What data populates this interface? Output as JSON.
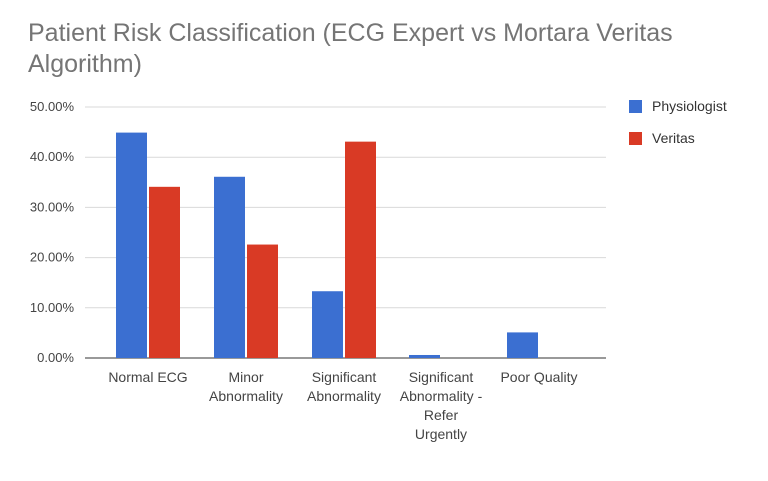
{
  "chart_data": {
    "type": "bar",
    "title": "Patient Risk Classification (ECG Expert vs Mortara Veritas Algorithm)",
    "xlabel": "",
    "ylabel": "",
    "categories": [
      [
        "Normal ECG"
      ],
      [
        "Minor",
        "Abnormality"
      ],
      [
        "Significant",
        "Abnormality"
      ],
      [
        "Significant",
        "Abnormality -",
        "Refer",
        "Urgently"
      ],
      [
        "Poor Quality"
      ]
    ],
    "series": [
      {
        "name": "Physiologist",
        "color": "#3b6fd1",
        "values": [
          44.9,
          36.1,
          13.3,
          0.6,
          5.1
        ]
      },
      {
        "name": "Veritas",
        "color": "#d93a25",
        "values": [
          34.1,
          22.6,
          43.1,
          0,
          0
        ]
      }
    ],
    "ylim": [
      0,
      50
    ],
    "yticks": [
      "0.00%",
      "10.00%",
      "20.00%",
      "30.00%",
      "40.00%",
      "50.00%"
    ],
    "grid": true,
    "legend_position": "right"
  }
}
